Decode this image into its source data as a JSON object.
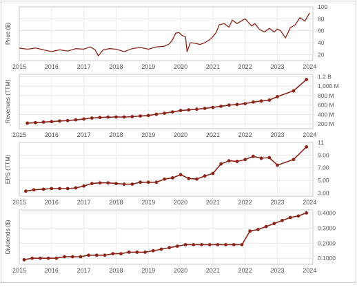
{
  "chart_data": [
    {
      "type": "line",
      "ylabel": "Price ($)",
      "ylim": [
        10,
        100
      ],
      "yticks": [
        "20",
        "40",
        "60",
        "80",
        "100"
      ],
      "ytick_values": [
        20,
        40,
        60,
        80,
        100
      ],
      "xlim": [
        2015.0,
        2024.1
      ],
      "xticks": [
        "2015",
        "2016",
        "2017",
        "2018",
        "2019",
        "2020",
        "2021",
        "2022",
        "2023",
        "2024"
      ],
      "xtick_values": [
        2015,
        2016,
        2017,
        2018,
        2019,
        2020,
        2021,
        2022,
        2023,
        2024
      ],
      "grid": true,
      "color": "#8b2318",
      "markers": false,
      "series": [
        {
          "x": [
            2015.0,
            2015.25,
            2015.5,
            2015.75,
            2016.0,
            2016.25,
            2016.5,
            2016.75,
            2017.0,
            2017.2,
            2017.35,
            2017.45,
            2017.6,
            2017.8,
            2018.0,
            2018.25,
            2018.5,
            2018.75,
            2019.0,
            2019.25,
            2019.5,
            2019.65,
            2019.75,
            2019.85,
            2019.95,
            2020.05,
            2020.15,
            2020.2,
            2020.3,
            2020.45,
            2020.6,
            2020.75,
            2020.9,
            2021.0,
            2021.1,
            2021.2,
            2021.35,
            2021.5,
            2021.6,
            2021.75,
            2021.9,
            2022.0,
            2022.1,
            2022.2,
            2022.3,
            2022.45,
            2022.6,
            2022.75,
            2022.9,
            2023.0,
            2023.1,
            2023.25,
            2023.4,
            2023.55,
            2023.7,
            2023.85,
            2024.0
          ],
          "y": [
            31,
            29,
            31,
            28,
            25,
            28,
            26,
            30,
            29,
            33,
            28,
            18,
            28,
            30,
            29,
            25,
            30,
            32,
            29,
            33,
            34,
            38,
            45,
            56,
            57,
            52,
            50,
            25,
            40,
            39,
            37,
            40,
            45,
            50,
            57,
            70,
            72,
            66,
            78,
            72,
            77,
            80,
            74,
            68,
            72,
            62,
            58,
            64,
            58,
            63,
            60,
            48,
            65,
            70,
            82,
            76,
            90
          ]
        }
      ]
    },
    {
      "type": "line",
      "ylabel": "Revenues (TTM)",
      "ylim": [
        100000000,
        1250000000
      ],
      "yticks": [
        "200 M",
        "400 M",
        "600 M",
        "800 M",
        "1,000 M",
        "1.2 B"
      ],
      "ytick_values": [
        200000000,
        400000000,
        600000000,
        800000000,
        1000000000,
        1200000000
      ],
      "xlim": [
        2015.0,
        2024.1
      ],
      "xticks": [
        "2015",
        "2016",
        "2017",
        "2018",
        "2019",
        "2020",
        "2021",
        "2022",
        "2023",
        "2024"
      ],
      "xtick_values": [
        2015,
        2016,
        2017,
        2018,
        2019,
        2020,
        2021,
        2022,
        2023,
        2024
      ],
      "grid": true,
      "color": "#8b2318",
      "markers": true,
      "series": [
        {
          "x": [
            2015.25,
            2015.5,
            2015.75,
            2016.0,
            2016.25,
            2016.5,
            2016.75,
            2017.0,
            2017.25,
            2017.5,
            2017.75,
            2018.0,
            2018.25,
            2018.5,
            2018.75,
            2019.0,
            2019.25,
            2019.5,
            2019.75,
            2020.0,
            2020.25,
            2020.5,
            2020.75,
            2021.0,
            2021.25,
            2021.5,
            2021.75,
            2022.0,
            2022.25,
            2022.5,
            2022.75,
            2023.0,
            2023.5,
            2023.9
          ],
          "y": [
            218000000,
            228000000,
            240000000,
            250000000,
            263000000,
            272000000,
            287000000,
            305000000,
            325000000,
            338000000,
            345000000,
            348000000,
            348000000,
            355000000,
            368000000,
            380000000,
            405000000,
            428000000,
            455000000,
            485000000,
            498000000,
            512000000,
            530000000,
            550000000,
            575000000,
            600000000,
            612000000,
            630000000,
            665000000,
            685000000,
            705000000,
            778000000,
            900000000,
            1140000000
          ]
        }
      ]
    },
    {
      "type": "line",
      "ylabel": "EPS (TTM)",
      "ylim": [
        2.5,
        11
      ],
      "yticks": [
        "3.00",
        "5.00",
        "7.00",
        "9.00",
        "11"
      ],
      "ytick_values": [
        3,
        5,
        7,
        9,
        11
      ],
      "xlim": [
        2015.0,
        2024.1
      ],
      "xticks": [
        "2015",
        "2016",
        "2017",
        "2018",
        "2019",
        "2020",
        "2021",
        "2022",
        "2023",
        "2024"
      ],
      "xtick_values": [
        2015,
        2016,
        2017,
        2018,
        2019,
        2020,
        2021,
        2022,
        2023,
        2024
      ],
      "grid": true,
      "color": "#8b2318",
      "markers": true,
      "series": [
        {
          "x": [
            2015.2,
            2015.45,
            2015.75,
            2016.0,
            2016.25,
            2016.5,
            2016.75,
            2017.0,
            2017.25,
            2017.5,
            2017.75,
            2018.0,
            2018.25,
            2018.5,
            2018.75,
            2019.0,
            2019.25,
            2019.5,
            2019.75,
            2020.0,
            2020.25,
            2020.5,
            2020.75,
            2021.0,
            2021.25,
            2021.5,
            2021.75,
            2022.0,
            2022.25,
            2022.5,
            2022.75,
            2023.0,
            2023.5,
            2023.9
          ],
          "y": [
            3.3,
            3.5,
            3.6,
            3.7,
            3.7,
            3.7,
            3.8,
            4.1,
            4.5,
            4.6,
            4.6,
            4.5,
            4.4,
            4.4,
            4.7,
            4.7,
            4.7,
            5.2,
            5.4,
            5.9,
            5.3,
            5.2,
            5.7,
            6.1,
            7.6,
            8.1,
            8.0,
            8.3,
            8.8,
            8.5,
            8.6,
            7.4,
            8.3,
            10.3
          ]
        }
      ]
    },
    {
      "type": "line",
      "ylabel": "Dividends ($)",
      "ylim": [
        0.06,
        0.42
      ],
      "yticks": [
        "0.1000",
        "0.2000",
        "0.3000",
        "0.4000"
      ],
      "ytick_values": [
        0.1,
        0.2,
        0.3,
        0.4
      ],
      "xlim": [
        2015.0,
        2024.1
      ],
      "xticks": [
        "2015",
        "2016",
        "2017",
        "2018",
        "2019",
        "2020",
        "2021",
        "2022",
        "2023",
        "2024"
      ],
      "xtick_values": [
        2015,
        2016,
        2017,
        2018,
        2019,
        2020,
        2021,
        2022,
        2023,
        2024
      ],
      "grid": true,
      "color": "#8b2318",
      "markers": true,
      "series": [
        {
          "x": [
            2015.15,
            2015.4,
            2015.65,
            2015.9,
            2016.15,
            2016.4,
            2016.65,
            2016.9,
            2017.15,
            2017.4,
            2017.65,
            2017.9,
            2018.15,
            2018.4,
            2018.65,
            2018.9,
            2019.15,
            2019.4,
            2019.65,
            2019.9,
            2020.15,
            2020.4,
            2020.65,
            2020.9,
            2021.15,
            2021.4,
            2021.65,
            2021.9,
            2022.15,
            2022.4,
            2022.65,
            2022.9,
            2023.15,
            2023.4,
            2023.65,
            2023.9
          ],
          "y": [
            0.09,
            0.1,
            0.1,
            0.1,
            0.1,
            0.11,
            0.11,
            0.11,
            0.12,
            0.12,
            0.12,
            0.13,
            0.13,
            0.14,
            0.14,
            0.14,
            0.15,
            0.16,
            0.17,
            0.18,
            0.19,
            0.19,
            0.19,
            0.19,
            0.19,
            0.19,
            0.19,
            0.19,
            0.28,
            0.29,
            0.31,
            0.33,
            0.35,
            0.37,
            0.38,
            0.4
          ]
        }
      ]
    }
  ]
}
